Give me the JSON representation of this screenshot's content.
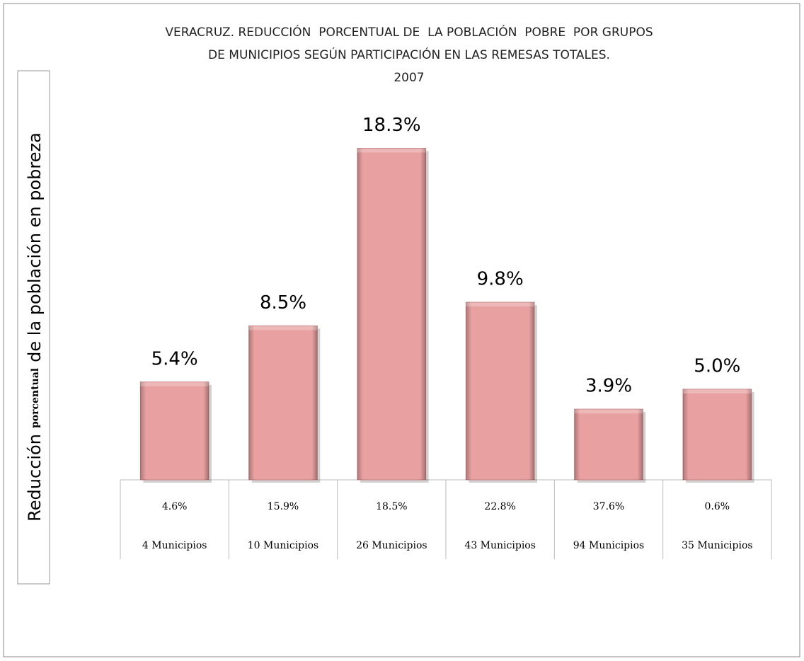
{
  "chart_data": {
    "type": "bar",
    "title": [
      "VERACRUZ. REDUCCIÓN  PORCENTUAL DE  LA POBLACIÓN  POBRE  POR GRUPOS",
      "DE MUNICIPIOS SEGÚN PARTICIPACIÓN EN LAS REMESAS TOTALES.",
      "2007"
    ],
    "ylabel": [
      "Reducción",
      "porcentual",
      "de la población en pobreza"
    ],
    "categories": [
      "4 Municipios",
      "10 Municipios",
      "26 Municipios",
      "43 Municipios",
      "94 Municipios",
      "35 Municipios"
    ],
    "table_row": [
      "4.6%",
      "15.9%",
      "18.5%",
      "22.8%",
      "37.6%",
      "0.6%"
    ],
    "values": [
      5.4,
      8.5,
      18.3,
      9.8,
      3.9,
      5.0
    ],
    "value_labels": [
      "5.4%",
      "8.5%",
      "18.3%",
      "9.8%",
      "3.9%",
      "5.0%"
    ],
    "color": "#e8a0a0",
    "ylim": [
      0,
      20
    ]
  }
}
